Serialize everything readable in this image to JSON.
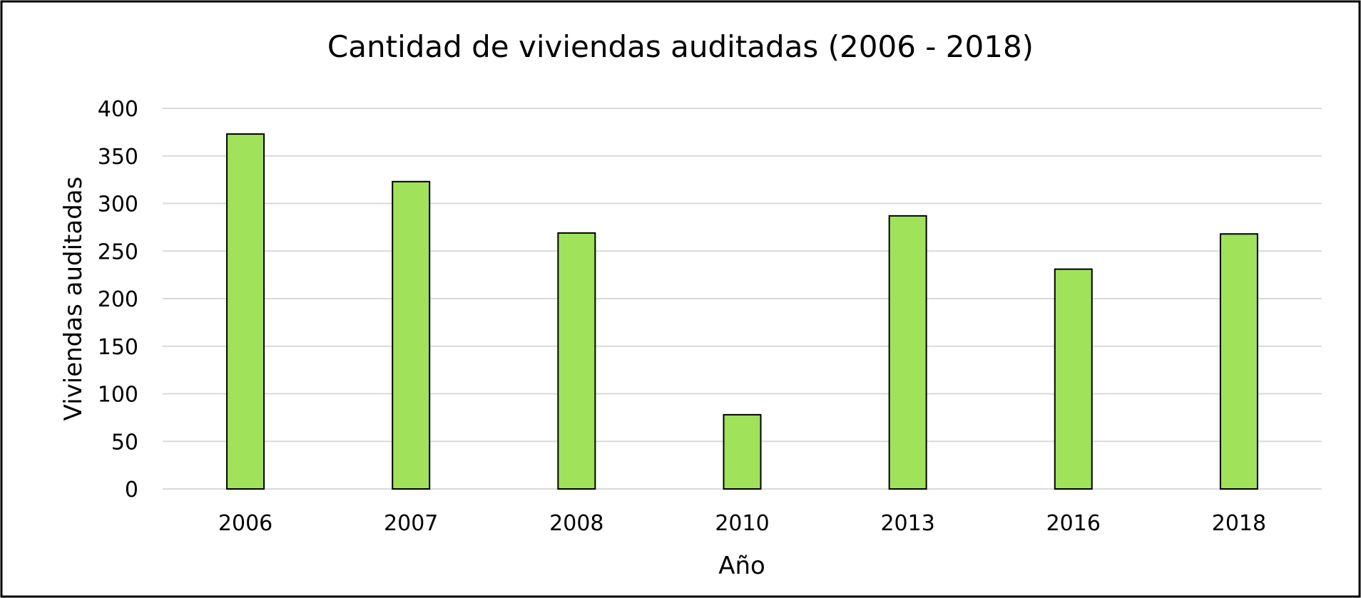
{
  "chart_data": {
    "type": "bar",
    "title": "Cantidad de viviendas auditadas (2006 - 2018)",
    "xlabel": "Año",
    "ylabel": "Viviendas auditadas",
    "categories": [
      "2006",
      "2007",
      "2008",
      "2010",
      "2013",
      "2016",
      "2018"
    ],
    "values": [
      373,
      323,
      269,
      78,
      287,
      231,
      268
    ],
    "ylim": [
      0,
      400
    ],
    "yticks": [
      0,
      50,
      100,
      150,
      200,
      250,
      300,
      350,
      400
    ],
    "ytick_labels": [
      "0",
      "50",
      "100",
      "150",
      "200",
      "250",
      "300",
      "350",
      "400"
    ],
    "grid": true,
    "legend": "none",
    "colors": {
      "bar_fill": "#a0e25a",
      "bar_stroke": "#000000",
      "grid": "#d9d9d9",
      "frame": "#000000"
    }
  }
}
